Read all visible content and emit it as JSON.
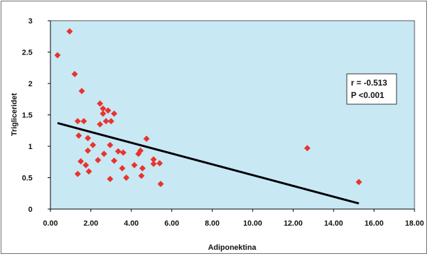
{
  "chart_data": {
    "type": "scatter",
    "xlabel": "Adiponektina",
    "ylabel": "Trigliceridet",
    "xlim": [
      0,
      18
    ],
    "ylim": [
      0,
      3
    ],
    "xticks": [
      "0.00",
      "2.00",
      "4.00",
      "6.00",
      "8.00",
      "10.00",
      "12.00",
      "14.00",
      "16.00",
      "18.00"
    ],
    "yticks": [
      "0",
      "0.5",
      "1",
      "1.5",
      "2",
      "2.5",
      "3"
    ],
    "grid": false,
    "plot_background": "#c8e8f4",
    "marker_color": "#e8342c",
    "trendline_color": "#000000",
    "annotation": {
      "line1": "r = -0.513",
      "line2": "P <0.001"
    },
    "points": [
      {
        "x": 0.35,
        "y": 2.45
      },
      {
        "x": 0.95,
        "y": 2.83
      },
      {
        "x": 1.2,
        "y": 2.15
      },
      {
        "x": 1.55,
        "y": 1.88
      },
      {
        "x": 1.35,
        "y": 1.4
      },
      {
        "x": 1.65,
        "y": 1.4
      },
      {
        "x": 1.4,
        "y": 1.17
      },
      {
        "x": 1.85,
        "y": 1.13
      },
      {
        "x": 2.1,
        "y": 1.02
      },
      {
        "x": 1.85,
        "y": 0.93
      },
      {
        "x": 1.5,
        "y": 0.76
      },
      {
        "x": 1.75,
        "y": 0.7
      },
      {
        "x": 1.35,
        "y": 0.56
      },
      {
        "x": 1.9,
        "y": 0.6
      },
      {
        "x": 2.45,
        "y": 1.68
      },
      {
        "x": 2.6,
        "y": 1.6
      },
      {
        "x": 2.6,
        "y": 1.52
      },
      {
        "x": 2.85,
        "y": 1.57
      },
      {
        "x": 3.15,
        "y": 1.52
      },
      {
        "x": 2.45,
        "y": 1.35
      },
      {
        "x": 2.75,
        "y": 1.4
      },
      {
        "x": 3.0,
        "y": 1.4
      },
      {
        "x": 2.95,
        "y": 1.02
      },
      {
        "x": 2.65,
        "y": 0.88
      },
      {
        "x": 2.35,
        "y": 0.78
      },
      {
        "x": 3.15,
        "y": 0.77
      },
      {
        "x": 3.35,
        "y": 0.92
      },
      {
        "x": 3.6,
        "y": 0.9
      },
      {
        "x": 3.55,
        "y": 0.65
      },
      {
        "x": 3.75,
        "y": 0.5
      },
      {
        "x": 2.95,
        "y": 0.48
      },
      {
        "x": 4.15,
        "y": 0.7
      },
      {
        "x": 4.35,
        "y": 0.88
      },
      {
        "x": 4.45,
        "y": 0.93
      },
      {
        "x": 4.5,
        "y": 0.53
      },
      {
        "x": 4.55,
        "y": 0.65
      },
      {
        "x": 4.75,
        "y": 1.12
      },
      {
        "x": 5.1,
        "y": 0.79
      },
      {
        "x": 5.1,
        "y": 0.72
      },
      {
        "x": 5.4,
        "y": 0.73
      },
      {
        "x": 5.45,
        "y": 0.4
      },
      {
        "x": 12.7,
        "y": 0.97
      },
      {
        "x": 15.25,
        "y": 0.43
      }
    ],
    "trendline": [
      {
        "x": 0.35,
        "y": 1.37
      },
      {
        "x": 15.25,
        "y": 0.09
      }
    ]
  }
}
